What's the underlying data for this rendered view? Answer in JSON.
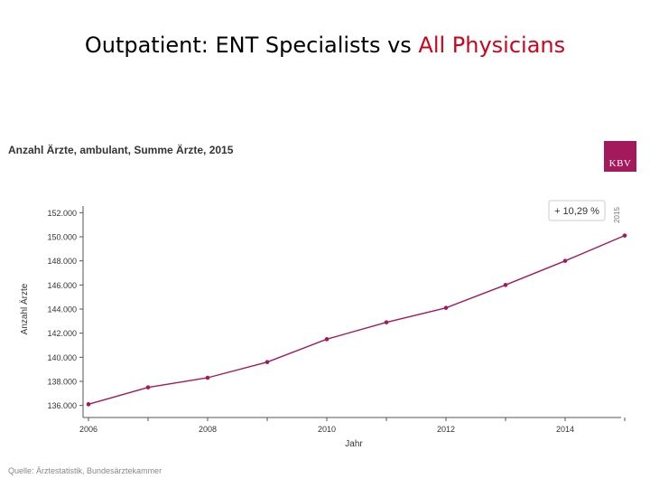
{
  "title": {
    "main": "Outpatient: ENT Specialists vs ",
    "accent": "All Physicians"
  },
  "logo": {
    "text": "KBV",
    "color": "#a3195b"
  },
  "source": "Quelle: Ärztestatistik, Bundesärztekammer",
  "chart_data": {
    "type": "line",
    "title": "Anzahl Ärzte, ambulant, Summe Ärzte, 2015",
    "xlabel": "Jahr",
    "ylabel": "Anzahl Ärzte",
    "x": [
      2006,
      2007,
      2008,
      2009,
      2010,
      2011,
      2012,
      2013,
      2014,
      2015
    ],
    "x_tick_labels": [
      "2006",
      "2008",
      "2010",
      "2012",
      "2014"
    ],
    "y_tick_labels": [
      "136.000",
      "138.000",
      "140.000",
      "142.000",
      "144.000",
      "146.000",
      "148.000",
      "150.000",
      "152.000"
    ],
    "series": [
      {
        "name": "Summe Ärzte",
        "color": "#a3195b",
        "values": [
          136100,
          137500,
          138300,
          139600,
          141500,
          142900,
          144100,
          146000,
          148000,
          150100
        ]
      }
    ],
    "xlim": [
      2006,
      2015
    ],
    "ylim": [
      135000,
      153000
    ],
    "grid": false,
    "annotation": {
      "text": "+ 10,29 %",
      "year_label": "2015"
    }
  }
}
